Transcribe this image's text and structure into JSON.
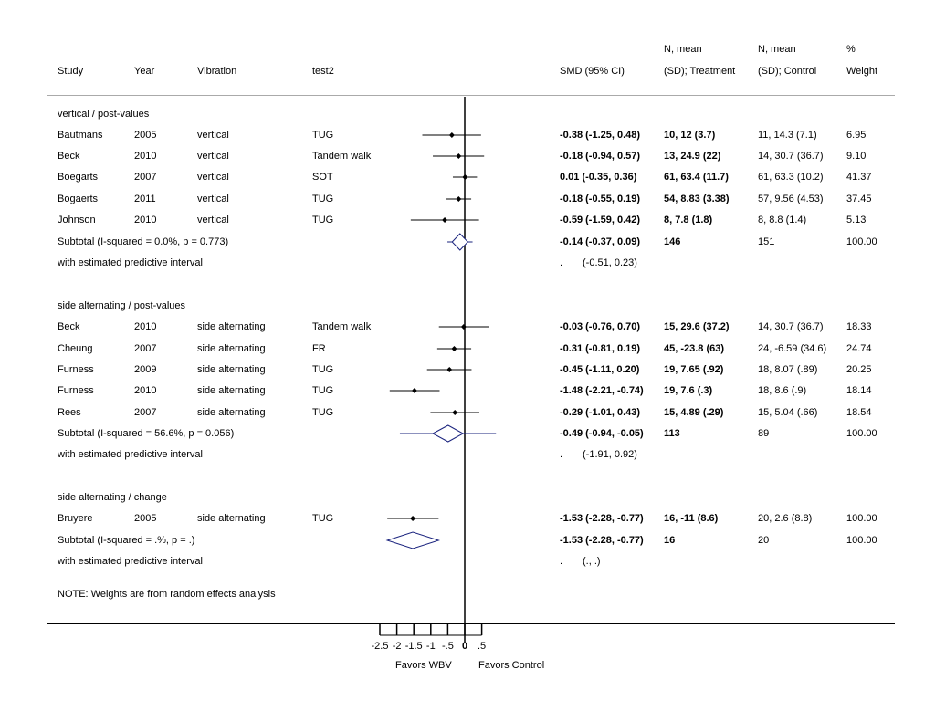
{
  "header": {
    "study": "Study",
    "year": "Year",
    "vibration": "Vibration",
    "test": "test2",
    "smd": "SMD (95% CI)",
    "treat_line1": "N, mean",
    "treat_line2": "(SD); Treatment",
    "ctrl_line1": "N, mean",
    "ctrl_line2": "(SD); Control",
    "weight_line1": "%",
    "weight_line2": "Weight"
  },
  "groups": [
    {
      "title": "vertical / post-values",
      "studies": [
        {
          "study": "Bautmans",
          "year": "2005",
          "vibration": "vertical",
          "test": "TUG",
          "smd": -0.38,
          "lo": -1.25,
          "hi": 0.48,
          "ci": "-0.38 (-1.25, 0.48)",
          "treat": "10, 12 (3.7)",
          "ctrl": "11, 14.3 (7.1)",
          "weight": "6.95"
        },
        {
          "study": "Beck",
          "year": "2010",
          "vibration": "vertical",
          "test": "Tandem walk",
          "smd": -0.18,
          "lo": -0.94,
          "hi": 0.57,
          "ci": "-0.18 (-0.94, 0.57)",
          "treat": "13, 24.9 (22)",
          "ctrl": "14, 30.7 (36.7)",
          "weight": "9.10"
        },
        {
          "study": "Boegarts",
          "year": "2007",
          "vibration": "vertical",
          "test": "SOT",
          "smd": 0.01,
          "lo": -0.35,
          "hi": 0.36,
          "ci": "0.01 (-0.35, 0.36)",
          "treat": "61, 63.4 (11.7)",
          "ctrl": "61, 63.3 (10.2)",
          "weight": "41.37"
        },
        {
          "study": "Bogaerts",
          "year": "2011",
          "vibration": "vertical",
          "test": "TUG",
          "smd": -0.18,
          "lo": -0.55,
          "hi": 0.19,
          "ci": "-0.18 (-0.55, 0.19)",
          "treat": "54, 8.83 (3.38)",
          "ctrl": "57, 9.56 (4.53)",
          "weight": "37.45"
        },
        {
          "study": "Johnson",
          "year": "2010",
          "vibration": "vertical",
          "test": "TUG",
          "smd": -0.59,
          "lo": -1.59,
          "hi": 0.42,
          "ci": "-0.59 (-1.59, 0.42)",
          "treat": "8, 7.8 (1.8)",
          "ctrl": "8, 8.8 (1.4)",
          "weight": "5.13"
        }
      ],
      "subtotal": {
        "label": "Subtotal  (I-squared = 0.0%, p = 0.773)",
        "smd": -0.14,
        "lo": -0.37,
        "hi": 0.09,
        "pi_lo": -0.51,
        "pi_hi": 0.23,
        "ci": "-0.14 (-0.37, 0.09)",
        "treat": "146",
        "ctrl": "151",
        "weight": "100.00"
      },
      "pi": {
        "label": "with estimated predictive interval",
        "dot": ".",
        "text": "(-0.51, 0.23)"
      }
    },
    {
      "title": "side alternating / post-values",
      "studies": [
        {
          "study": "Beck",
          "year": "2010",
          "vibration": "side alternating",
          "test": "Tandem walk",
          "smd": -0.03,
          "lo": -0.76,
          "hi": 0.7,
          "ci": "-0.03 (-0.76, 0.70)",
          "treat": "15, 29.6 (37.2)",
          "ctrl": "14, 30.7 (36.7)",
          "weight": "18.33"
        },
        {
          "study": "Cheung",
          "year": "2007",
          "vibration": "side alternating",
          "test": "FR",
          "smd": -0.31,
          "lo": -0.81,
          "hi": 0.19,
          "ci": "-0.31 (-0.81, 0.19)",
          "treat": "45, -23.8 (63)",
          "ctrl": "24, -6.59 (34.6)",
          "weight": "24.74"
        },
        {
          "study": "Furness",
          "year": "2009",
          "vibration": "side alternating",
          "test": "TUG",
          "smd": -0.45,
          "lo": -1.11,
          "hi": 0.2,
          "ci": "-0.45 (-1.11, 0.20)",
          "treat": "19, 7.65 (.92)",
          "ctrl": "18, 8.07 (.89)",
          "weight": "20.25"
        },
        {
          "study": "Furness",
          "year": "2010",
          "vibration": "side alternating",
          "test": "TUG",
          "smd": -1.48,
          "lo": -2.21,
          "hi": -0.74,
          "ci": "-1.48 (-2.21, -0.74)",
          "treat": "19, 7.6 (.3)",
          "ctrl": "18, 8.6 (.9)",
          "weight": "18.14"
        },
        {
          "study": "Rees",
          "year": "2007",
          "vibration": "side alternating",
          "test": "TUG",
          "smd": -0.29,
          "lo": -1.01,
          "hi": 0.43,
          "ci": "-0.29 (-1.01, 0.43)",
          "treat": "15, 4.89 (.29)",
          "ctrl": "15, 5.04 (.66)",
          "weight": "18.54"
        }
      ],
      "subtotal": {
        "label": "Subtotal  (I-squared = 56.6%, p = 0.056)",
        "smd": -0.49,
        "lo": -0.94,
        "hi": -0.05,
        "pi_lo": -1.91,
        "pi_hi": 0.92,
        "ci": "-0.49 (-0.94, -0.05)",
        "treat": "113",
        "ctrl": "89",
        "weight": "100.00"
      },
      "pi": {
        "label": "with estimated predictive interval",
        "dot": ".",
        "text": "(-1.91, 0.92)"
      }
    },
    {
      "title": "side alternating / change",
      "studies": [
        {
          "study": "Bruyere",
          "year": "2005",
          "vibration": "side alternating",
          "test": "TUG",
          "smd": -1.53,
          "lo": -2.28,
          "hi": -0.77,
          "ci": "-1.53 (-2.28, -0.77)",
          "treat": "16, -11 (8.6)",
          "ctrl": "20, 2.6 (8.8)",
          "weight": "100.00"
        }
      ],
      "subtotal": {
        "label": "Subtotal  (I-squared = .%, p = .)",
        "smd": -1.53,
        "lo": -2.28,
        "hi": -0.77,
        "ci": "-1.53 (-2.28, -0.77)",
        "treat": "16",
        "ctrl": "20",
        "weight": "100.00"
      },
      "pi": {
        "label": "with estimated predictive interval",
        "dot": ".",
        "text": "(., .)"
      }
    }
  ],
  "note": "NOTE: Weights are from random effects analysis",
  "axis": {
    "ticks": [
      -2.5,
      -2,
      -1.5,
      -1,
      -0.5,
      0,
      0.5
    ],
    "tick_labels": [
      "-2.5",
      "-2",
      "-1.5",
      "-1",
      "-.5",
      "0",
      ".5"
    ],
    "favors_left": "Favors WBV",
    "favors_right": "Favors Control"
  },
  "colors": {
    "diamond": "#1a237e",
    "line": "#000000",
    "rule": "#999999"
  },
  "chart_data": {
    "type": "forest",
    "xlim": [
      -2.5,
      0.5
    ],
    "null_line": 0,
    "xlabel_left": "Favors WBV",
    "xlabel_right": "Favors Control",
    "series": [
      {
        "name": "vertical / post-values",
        "x": [
          -0.38,
          -0.18,
          0.01,
          -0.18,
          -0.59
        ],
        "lo": [
          -1.25,
          -0.94,
          -0.35,
          -0.55,
          -1.59
        ],
        "hi": [
          0.48,
          0.57,
          0.36,
          0.19,
          0.42
        ],
        "pooled": -0.14
      },
      {
        "name": "side alternating / post-values",
        "x": [
          -0.03,
          -0.31,
          -0.45,
          -1.48,
          -0.29
        ],
        "lo": [
          -0.76,
          -0.81,
          -1.11,
          -2.21,
          -1.01
        ],
        "hi": [
          0.7,
          0.19,
          0.2,
          -0.74,
          0.43
        ],
        "pooled": -0.49
      },
      {
        "name": "side alternating / change",
        "x": [
          -1.53
        ],
        "lo": [
          -2.28
        ],
        "hi": [
          -0.77
        ],
        "pooled": -1.53
      }
    ]
  }
}
